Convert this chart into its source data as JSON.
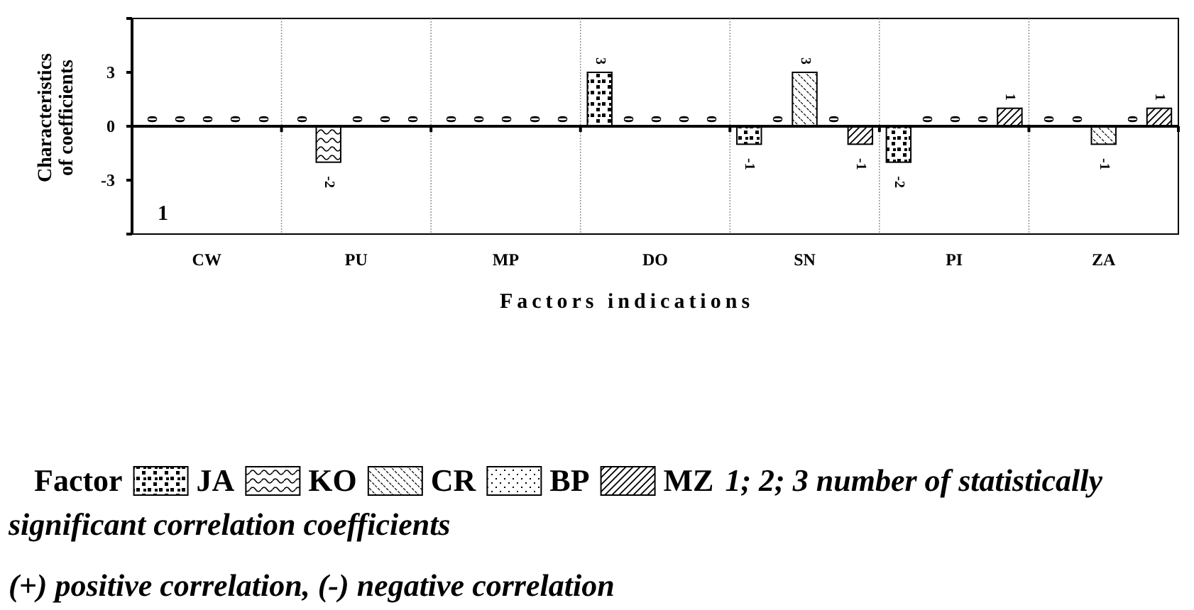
{
  "chart_data": {
    "type": "bar",
    "xlabel": "Factors indications",
    "ylabel": "Characteristics of coefficients",
    "legend_title": "Factor",
    "categories": [
      "CW",
      "PU",
      "MP",
      "DO",
      "SN",
      "PI",
      "ZA"
    ],
    "series": [
      {
        "name": "JA",
        "color": "#000000",
        "values": [
          0,
          0,
          0,
          3,
          -1,
          -2,
          0
        ]
      },
      {
        "name": "KO",
        "color": "#000000",
        "values": [
          0,
          -2,
          0,
          0,
          0,
          0,
          0
        ]
      },
      {
        "name": "CR",
        "color": "#000000",
        "values": [
          0,
          0,
          0,
          0,
          3,
          0,
          -1
        ]
      },
      {
        "name": "BP",
        "color": "#000000",
        "values": [
          0,
          0,
          0,
          0,
          0,
          0,
          0
        ]
      },
      {
        "name": "MZ",
        "color": "#000000",
        "values": [
          0,
          0,
          0,
          0,
          -1,
          1,
          1
        ]
      }
    ],
    "ylim": [
      -6,
      6
    ],
    "yticks": [
      {
        "value": -6,
        "label": null
      },
      -3,
      0,
      3,
      {
        "value": 6,
        "label": null
      }
    ],
    "grid": false,
    "legend": "bottom",
    "data_labels": true,
    "annotations": [
      "1",
      "1; 2; 3 number of statistically significant correlation coefficients",
      "(+) positive correlation, (-) negative correlation"
    ]
  }
}
